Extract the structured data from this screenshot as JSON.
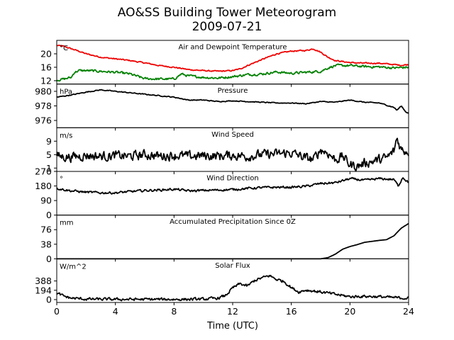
{
  "title": "AO&SS Building Tower Meteorogram",
  "subtitle": "2009-07-21",
  "xlabel": "Time (UTC)",
  "colors": {
    "air_temp": "#ee0000",
    "dewpoint": "#008000",
    "line": "#000000"
  },
  "chart_data": [
    {
      "type": "line",
      "title": "Air and Dewpoint Temperature",
      "unit": "°C",
      "xlim": [
        0,
        24
      ],
      "ylim": [
        11,
        24
      ],
      "yticks": [
        12,
        16,
        20
      ],
      "series": [
        {
          "color": "#ee0000",
          "noise": 0.15,
          "x": [
            0,
            0.5,
            1,
            1.5,
            2,
            3,
            4,
            5,
            6,
            7,
            8,
            9,
            10,
            11,
            12,
            12.5,
            13,
            14,
            15,
            16,
            17,
            17.5,
            18,
            18.5,
            19,
            20,
            21,
            22,
            23,
            23.5,
            24
          ],
          "y": [
            22.5,
            22.2,
            21.5,
            20.8,
            20,
            19,
            18.5,
            18,
            17.3,
            16.5,
            16,
            15.3,
            15,
            14.8,
            15,
            15.5,
            16.5,
            18.3,
            20,
            20.8,
            21,
            21.5,
            20.5,
            19,
            18,
            17.4,
            17.2,
            17.2,
            16.8,
            16.6,
            16.8
          ]
        },
        {
          "color": "#008000",
          "noise": 0.3,
          "x": [
            0,
            0.5,
            1,
            1.2,
            1.5,
            2,
            3,
            4,
            5,
            6,
            7,
            8,
            8.5,
            9,
            10,
            11,
            12,
            13,
            14,
            15,
            16,
            17,
            18,
            18.5,
            19,
            20,
            21,
            22,
            23,
            24
          ],
          "y": [
            12.2,
            12.5,
            13,
            14.5,
            15,
            15,
            14.8,
            14.5,
            14,
            12.6,
            12.5,
            12.5,
            14,
            13.4,
            13,
            12.8,
            13.2,
            13.8,
            14,
            14.6,
            14.2,
            14.5,
            14.8,
            15.8,
            16.5,
            16.5,
            16.2,
            16.1,
            15.8,
            16
          ]
        }
      ]
    },
    {
      "type": "line",
      "title": "Pressure",
      "unit": "hPa",
      "xlim": [
        0,
        24
      ],
      "ylim": [
        975,
        981
      ],
      "yticks": [
        976,
        978,
        980
      ],
      "series": [
        {
          "color": "#000000",
          "noise": 0.05,
          "x": [
            0,
            1,
            2,
            3,
            4,
            5,
            6,
            7,
            8,
            9,
            10,
            11,
            12,
            13,
            14,
            15,
            16,
            17,
            18,
            19,
            20,
            21,
            22,
            23,
            23.2,
            23.5,
            23.8,
            24
          ],
          "y": [
            979.2,
            979.5,
            979.9,
            980.2,
            980.0,
            979.8,
            979.6,
            979.4,
            979.2,
            978.8,
            978.8,
            978.6,
            978.7,
            978.6,
            978.5,
            978.4,
            978.4,
            978.3,
            978.6,
            978.5,
            978.8,
            978.5,
            978.4,
            977.8,
            977.4,
            978.0,
            977.2,
            977.0
          ]
        }
      ]
    },
    {
      "type": "line",
      "title": "Wind Speed",
      "unit": "m/s",
      "xlim": [
        0,
        24
      ],
      "ylim": [
        0,
        13
      ],
      "yticks": [
        1,
        5,
        9
      ],
      "series": [
        {
          "color": "#000000",
          "noise": 1.2,
          "x": [
            0,
            1,
            2,
            3,
            4,
            5,
            6,
            7,
            8,
            9,
            10,
            11,
            12,
            13,
            14,
            15,
            16,
            17,
            17.5,
            18,
            18.5,
            19,
            19.5,
            20,
            20.5,
            21,
            22,
            22.5,
            23,
            23.2,
            23.5,
            24
          ],
          "y": [
            4.5,
            4.3,
            4.8,
            4.5,
            4.7,
            4.5,
            5,
            4.6,
            4.8,
            4.5,
            4.7,
            4.6,
            4.8,
            4.5,
            5,
            5.2,
            5.5,
            4,
            3.5,
            6.5,
            5.5,
            3.5,
            4.5,
            2,
            1.5,
            2.5,
            3.5,
            4,
            6,
            10,
            6.5,
            6
          ]
        }
      ]
    },
    {
      "type": "line",
      "title": "Wind Direction",
      "unit": "°",
      "xlim": [
        0,
        24
      ],
      "ylim": [
        0,
        270
      ],
      "yticks": [
        0,
        90,
        180,
        270
      ],
      "series": [
        {
          "color": "#000000",
          "noise": 6,
          "x": [
            0,
            1,
            2,
            3,
            4,
            5,
            6,
            7,
            8,
            9,
            10,
            11,
            12,
            13,
            14,
            15,
            16,
            17,
            18,
            19,
            20,
            21,
            22,
            23,
            23.3,
            23.6,
            24
          ],
          "y": [
            165,
            150,
            142,
            138,
            138,
            145,
            152,
            155,
            160,
            150,
            152,
            155,
            158,
            165,
            170,
            172,
            172,
            178,
            195,
            200,
            225,
            215,
            225,
            220,
            180,
            235,
            200
          ]
        }
      ]
    },
    {
      "type": "line",
      "title": "Accumulated Precipitation Since 0Z",
      "unit": "mm",
      "xlim": [
        0,
        24
      ],
      "ylim": [
        0,
        114
      ],
      "yticks": [
        0,
        38,
        76
      ],
      "series": [
        {
          "color": "#000000",
          "noise": 0,
          "x": [
            0,
            18,
            18.5,
            19,
            19.5,
            20,
            20.5,
            21,
            22,
            22.5,
            23,
            23.5,
            24
          ],
          "y": [
            0,
            0,
            3,
            12,
            25,
            32,
            37,
            43,
            48,
            50,
            60,
            80,
            92
          ]
        }
      ]
    },
    {
      "type": "line",
      "title": "Solar Flux",
      "unit": "W/m^2",
      "xlim": [
        0,
        24
      ],
      "ylim": [
        -60,
        850
      ],
      "yticks": [
        0,
        194,
        388
      ],
      "series": [
        {
          "color": "#000000",
          "noise": 25,
          "x": [
            0,
            0.5,
            1,
            2,
            4,
            8,
            10,
            11,
            11.5,
            12,
            12.5,
            13,
            13.5,
            14,
            14.5,
            15,
            15.5,
            16,
            16.5,
            17,
            18,
            19,
            20,
            21,
            22,
            23,
            24
          ],
          "y": [
            130,
            70,
            30,
            10,
            5,
            5,
            8,
            30,
            80,
            240,
            330,
            280,
            400,
            450,
            500,
            420,
            380,
            250,
            160,
            200,
            160,
            110,
            60,
            70,
            60,
            40,
            30
          ]
        }
      ]
    }
  ],
  "xticks": [
    0,
    4,
    8,
    12,
    16,
    20,
    24
  ]
}
